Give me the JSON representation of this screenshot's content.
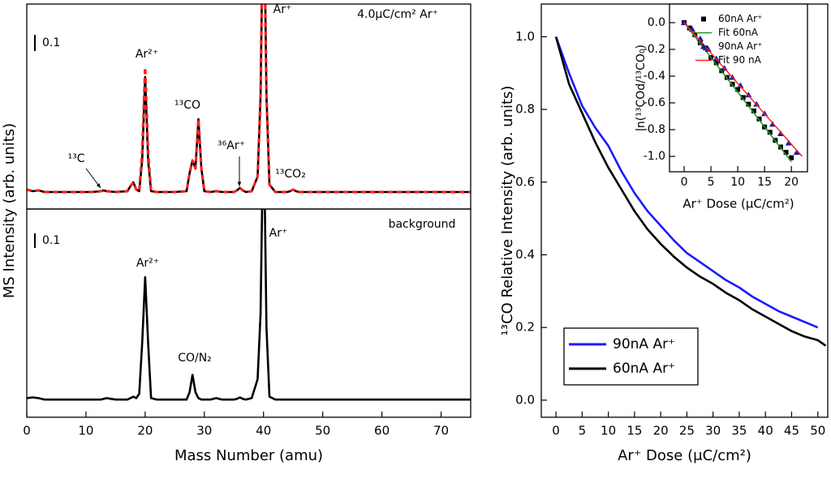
{
  "chart_data": [
    {
      "type": "line",
      "ylabel": "MS Intensity (arb. units)",
      "xlim": [
        0,
        75
      ],
      "ylim": [
        -0.1,
        1.165
      ],
      "scale_bar": 0.1,
      "annotations": [
        "4.0μC/cm² Ar⁺",
        "Ar²⁺",
        "¹³CO",
        "³⁶Ar⁺",
        "¹³C",
        "¹³CO₂",
        "Ar⁺"
      ],
      "x": [
        0,
        1,
        2,
        3,
        5,
        8,
        11,
        12.5,
        13,
        13.5,
        15,
        17,
        17.5,
        18,
        18.5,
        19,
        19.5,
        20,
        20.5,
        21,
        22,
        25,
        27,
        27.5,
        28,
        28.5,
        29,
        29.5,
        30,
        31,
        32,
        33,
        35,
        35.5,
        36,
        36.5,
        37,
        38,
        39,
        39.5,
        40,
        40.5,
        41,
        42,
        44,
        44.5,
        45,
        45.5,
        46,
        50,
        55,
        60,
        65,
        70,
        75
      ],
      "series": [
        {
          "color": "#000000",
          "linestyle": "solid",
          "values": [
            0.02,
            0.01,
            0.015,
            0.005,
            0.005,
            0.005,
            0.005,
            0.01,
            0.015,
            0.01,
            0.005,
            0.01,
            0.04,
            0.065,
            0.02,
            0.01,
            0.2,
            0.715,
            0.2,
            0.01,
            0.005,
            0.005,
            0.01,
            0.12,
            0.2,
            0.15,
            0.455,
            0.15,
            0.01,
            0.005,
            0.01,
            0.005,
            0.005,
            0.015,
            0.03,
            0.015,
            0.005,
            0.01,
            0.1,
            0.6,
            2.0,
            0.6,
            0.05,
            0.005,
            0.005,
            0.01,
            0.02,
            0.01,
            0.005,
            0.005,
            0.005,
            0.005,
            0.005,
            0.005,
            0.005
          ]
        },
        {
          "color": "#ff2020",
          "linestyle": "dashed",
          "values": [
            0.02,
            0.01,
            0.015,
            0.005,
            0.005,
            0.005,
            0.005,
            0.01,
            0.015,
            0.01,
            0.005,
            0.01,
            0.04,
            0.065,
            0.02,
            0.01,
            0.25,
            0.775,
            0.25,
            0.01,
            0.005,
            0.005,
            0.01,
            0.12,
            0.2,
            0.15,
            0.455,
            0.15,
            0.01,
            0.005,
            0.01,
            0.005,
            0.005,
            0.015,
            0.03,
            0.015,
            0.005,
            0.01,
            0.1,
            0.6,
            2.0,
            0.6,
            0.05,
            0.005,
            0.005,
            0.01,
            0.02,
            0.01,
            0.005,
            0.005,
            0.005,
            0.005,
            0.005,
            0.005,
            0.005
          ]
        }
      ]
    },
    {
      "type": "line",
      "xlabel": "Mass Number (amu)",
      "xlim": [
        0,
        75
      ],
      "ylim": [
        -0.111,
        1.317
      ],
      "xticks": [
        0,
        10,
        20,
        30,
        40,
        50,
        60,
        70
      ],
      "scale_bar": 0.1,
      "annotations": [
        "background",
        "Ar²⁺",
        "CO/N₂",
        "Ar⁺"
      ],
      "x": [
        0,
        1,
        2,
        3,
        5,
        8,
        11,
        12.5,
        13,
        13.5,
        15,
        17,
        17.5,
        18,
        18.5,
        19,
        19.5,
        20,
        20.5,
        21,
        22,
        25,
        27,
        27.5,
        28,
        28.5,
        29,
        29.5,
        30,
        31,
        32,
        33,
        35,
        35.5,
        36,
        36.5,
        37,
        38,
        39,
        39.5,
        40,
        40.5,
        41,
        42,
        44,
        44.5,
        45,
        45.5,
        46,
        50,
        55,
        60,
        65,
        70,
        75
      ],
      "series": [
        {
          "color": "#000000",
          "linestyle": "solid",
          "values": [
            0.02,
            0.025,
            0.02,
            0.01,
            0.01,
            0.01,
            0.01,
            0.01,
            0.015,
            0.02,
            0.01,
            0.01,
            0.02,
            0.03,
            0.02,
            0.05,
            0.4,
            0.85,
            0.4,
            0.02,
            0.01,
            0.01,
            0.01,
            0.06,
            0.18,
            0.06,
            0.02,
            0.01,
            0.01,
            0.01,
            0.02,
            0.01,
            0.01,
            0.015,
            0.025,
            0.015,
            0.01,
            0.02,
            0.15,
            0.6,
            2.0,
            0.5,
            0.03,
            0.01,
            0.01,
            0.01,
            0.01,
            0.01,
            0.01,
            0.01,
            0.01,
            0.01,
            0.01,
            0.01,
            0.01
          ]
        }
      ]
    },
    {
      "type": "line",
      "xlabel": "Ar⁺ Dose (μC/cm²)",
      "ylabel": "¹³CO Relative Intensity (arb. units)",
      "xlim": [
        -2.8,
        51.9
      ],
      "ylim": [
        -0.047,
        1.09
      ],
      "xticks": [
        0,
        5,
        10,
        15,
        20,
        25,
        30,
        35,
        40,
        45,
        50
      ],
      "yticks": [
        {
          "value": 0,
          "label": "0.0"
        },
        0.2,
        0.4,
        0.6,
        0.8,
        {
          "value": 1,
          "label": "1.0"
        }
      ],
      "legend": "lower left",
      "series": [
        {
          "name": "90nA Ar⁺",
          "color": "#1a1aff",
          "x": [
            0,
            2.5,
            5,
            7.5,
            10,
            12.5,
            15,
            17.5,
            20,
            22.5,
            25,
            27.5,
            30,
            32.5,
            35,
            37.5,
            40,
            42.5,
            45,
            47.5,
            50
          ],
          "values": [
            1.0,
            0.9,
            0.81,
            0.75,
            0.7,
            0.63,
            0.57,
            0.52,
            0.48,
            0.44,
            0.405,
            0.38,
            0.355,
            0.33,
            0.31,
            0.285,
            0.265,
            0.245,
            0.23,
            0.215,
            0.2
          ]
        },
        {
          "name": "60nA Ar⁺",
          "color": "#000000",
          "x": [
            0,
            2.5,
            5,
            7.5,
            10,
            12.5,
            15,
            17.5,
            20,
            22.5,
            25,
            27.5,
            30,
            32.5,
            35,
            37.5,
            40,
            42.5,
            45,
            47.5,
            50,
            51.5
          ],
          "values": [
            1.0,
            0.87,
            0.79,
            0.71,
            0.64,
            0.58,
            0.52,
            0.47,
            0.43,
            0.395,
            0.365,
            0.34,
            0.32,
            0.295,
            0.275,
            0.25,
            0.23,
            0.21,
            0.19,
            0.175,
            0.165,
            0.15
          ]
        }
      ]
    },
    {
      "type": "scatter",
      "xlabel": "Ar⁺ Dose (μC/cm²)",
      "ylabel": "ln(¹³COd/¹³CO₀)",
      "xlim": [
        -2.73,
        23.0
      ],
      "ylim": [
        -1.115,
        0.139
      ],
      "xticks": [
        0,
        5,
        10,
        15,
        20
      ],
      "yticks": [
        {
          "value": 0,
          "label": "0.0"
        },
        -0.2,
        -0.4,
        -0.6,
        -0.8,
        {
          "value": -1,
          "label": "-1.0"
        }
      ],
      "legend": "upper right",
      "series": [
        {
          "name": "60nA Ar⁺",
          "color": "#000000",
          "marker": "square",
          "x": [
            0,
            1,
            2,
            3,
            4,
            5,
            6,
            7,
            8,
            9,
            10,
            11,
            12,
            13,
            14,
            15,
            16,
            17,
            18,
            19,
            20
          ],
          "values": [
            0,
            -0.04,
            -0.09,
            -0.15,
            -0.19,
            -0.26,
            -0.3,
            -0.36,
            -0.41,
            -0.46,
            -0.5,
            -0.56,
            -0.61,
            -0.66,
            -0.72,
            -0.78,
            -0.82,
            -0.88,
            -0.93,
            -0.97,
            -1.01
          ]
        },
        {
          "name": "Fit 60nA",
          "color": "#1a9a1a",
          "marker": "line",
          "x": [
            0,
            20
          ],
          "values": [
            0,
            -1.04
          ]
        },
        {
          "name": "90nA Ar⁺",
          "color": "#1a1aa0",
          "marker": "triangle",
          "x": [
            0,
            1.5,
            3,
            4.5,
            6,
            7.5,
            9,
            10.5,
            12,
            13.5,
            15,
            16.5,
            18,
            19.5,
            21
          ],
          "values": [
            0,
            -0.05,
            -0.12,
            -0.2,
            -0.27,
            -0.34,
            -0.41,
            -0.47,
            -0.54,
            -0.61,
            -0.68,
            -0.76,
            -0.83,
            -0.9,
            -0.97
          ]
        },
        {
          "name": "Fit 90 nA",
          "color": "#ff2020",
          "marker": "line",
          "x": [
            0,
            22
          ],
          "values": [
            0,
            -1.0
          ]
        }
      ]
    }
  ]
}
